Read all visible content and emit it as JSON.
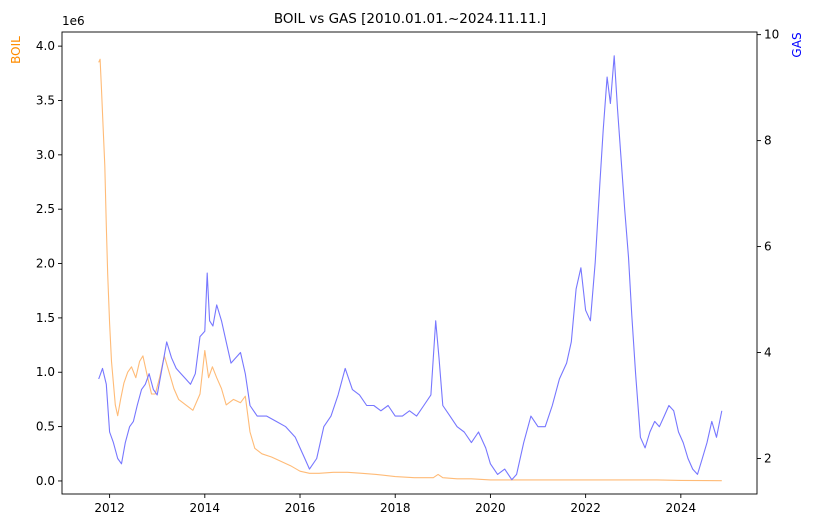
{
  "chart_data": {
    "type": "line",
    "title": "BOIL vs GAS [2010.01.01.~2024.11.11.]",
    "xlabel": "",
    "x_ticks": [
      2012,
      2014,
      2016,
      2018,
      2020,
      2022,
      2024
    ],
    "xlim": [
      2011.0,
      2025.6
    ],
    "grid": false,
    "legend": "none",
    "left_axis": {
      "label": "BOIL",
      "color": "#ff8c00",
      "scale_note": "1e6",
      "ylim": [
        -0.12,
        4.13
      ],
      "ticks": [
        "0.0",
        "0.5",
        "1.0",
        "1.5",
        "2.0",
        "2.5",
        "3.0",
        "3.5",
        "4.0"
      ]
    },
    "right_axis": {
      "label": "GAS",
      "color": "#0000ff",
      "ylim": [
        1.33,
        10.05
      ],
      "ticks": [
        "2",
        "4",
        "6",
        "8",
        "10"
      ]
    },
    "series": [
      {
        "name": "BOIL",
        "axis": "left",
        "units": "x1e6",
        "color": "#ffbb77",
        "x": [
          2011.77,
          2011.8,
          2011.83,
          2011.86,
          2011.9,
          2011.93,
          2011.96,
          2012.0,
          2012.04,
          2012.08,
          2012.12,
          2012.17,
          2012.23,
          2012.3,
          2012.38,
          2012.46,
          2012.55,
          2012.63,
          2012.7,
          2012.8,
          2012.88,
          2012.96,
          2013.05,
          2013.15,
          2013.25,
          2013.35,
          2013.45,
          2013.6,
          2013.75,
          2013.9,
          2014.0,
          2014.08,
          2014.16,
          2014.25,
          2014.35,
          2014.45,
          2014.6,
          2014.75,
          2014.85,
          2014.95,
          2015.05,
          2015.2,
          2015.4,
          2015.6,
          2015.8,
          2016.0,
          2016.2,
          2016.4,
          2016.7,
          2017.0,
          2017.3,
          2017.6,
          2018.0,
          2018.4,
          2018.8,
          2018.9,
          2019.0,
          2019.3,
          2019.6,
          2020.0,
          2020.5,
          2021.0,
          2021.5,
          2022.0,
          2022.5,
          2023.0,
          2023.5,
          2024.0,
          2024.5,
          2024.86
        ],
        "values": [
          3.85,
          3.88,
          3.6,
          3.3,
          2.9,
          2.35,
          1.9,
          1.45,
          1.1,
          0.9,
          0.7,
          0.6,
          0.75,
          0.9,
          1.0,
          1.05,
          0.95,
          1.1,
          1.15,
          0.95,
          0.8,
          0.8,
          0.95,
          1.15,
          1.0,
          0.85,
          0.75,
          0.7,
          0.65,
          0.8,
          1.2,
          0.95,
          1.05,
          0.95,
          0.85,
          0.7,
          0.75,
          0.72,
          0.78,
          0.45,
          0.3,
          0.25,
          0.22,
          0.18,
          0.14,
          0.09,
          0.07,
          0.07,
          0.08,
          0.08,
          0.07,
          0.06,
          0.04,
          0.03,
          0.03,
          0.06,
          0.03,
          0.02,
          0.02,
          0.01,
          0.01,
          0.01,
          0.01,
          0.01,
          0.01,
          0.01,
          0.01,
          0.005,
          0.003,
          0.002
        ]
      },
      {
        "name": "GAS",
        "axis": "right",
        "units": "",
        "color": "#7777ff",
        "x": [
          2011.77,
          2011.85,
          2011.93,
          2012.0,
          2012.08,
          2012.17,
          2012.25,
          2012.33,
          2012.42,
          2012.5,
          2012.58,
          2012.67,
          2012.75,
          2012.83,
          2012.92,
          2013.0,
          2013.1,
          2013.2,
          2013.3,
          2013.4,
          2013.5,
          2013.6,
          2013.7,
          2013.8,
          2013.9,
          2014.0,
          2014.05,
          2014.1,
          2014.17,
          2014.25,
          2014.35,
          2014.45,
          2014.55,
          2014.65,
          2014.75,
          2014.85,
          2014.95,
          2015.1,
          2015.3,
          2015.5,
          2015.7,
          2015.9,
          2016.0,
          2016.1,
          2016.2,
          2016.35,
          2016.5,
          2016.65,
          2016.8,
          2016.95,
          2017.1,
          2017.25,
          2017.4,
          2017.55,
          2017.7,
          2017.85,
          2018.0,
          2018.15,
          2018.3,
          2018.45,
          2018.6,
          2018.75,
          2018.85,
          2018.92,
          2019.0,
          2019.15,
          2019.3,
          2019.45,
          2019.6,
          2019.75,
          2019.9,
          2020.0,
          2020.15,
          2020.3,
          2020.45,
          2020.55,
          2020.7,
          2020.85,
          2021.0,
          2021.15,
          2021.3,
          2021.45,
          2021.6,
          2021.7,
          2021.8,
          2021.9,
          2022.0,
          2022.1,
          2022.2,
          2022.3,
          2022.37,
          2022.45,
          2022.52,
          2022.6,
          2022.67,
          2022.75,
          2022.82,
          2022.9,
          2022.97,
          2023.05,
          2023.15,
          2023.25,
          2023.35,
          2023.45,
          2023.55,
          2023.65,
          2023.75,
          2023.85,
          2023.95,
          2024.05,
          2024.15,
          2024.25,
          2024.35,
          2024.45,
          2024.55,
          2024.65,
          2024.75,
          2024.86
        ],
        "values": [
          3.5,
          3.7,
          3.4,
          2.5,
          2.3,
          2.0,
          1.9,
          2.3,
          2.6,
          2.7,
          3.0,
          3.3,
          3.4,
          3.6,
          3.3,
          3.2,
          3.7,
          4.2,
          3.9,
          3.7,
          3.6,
          3.5,
          3.4,
          3.6,
          4.3,
          4.4,
          5.5,
          4.6,
          4.5,
          4.9,
          4.6,
          4.2,
          3.8,
          3.9,
          4.0,
          3.6,
          3.0,
          2.8,
          2.8,
          2.7,
          2.6,
          2.4,
          2.2,
          2.0,
          1.8,
          2.0,
          2.6,
          2.8,
          3.2,
          3.7,
          3.3,
          3.2,
          3.0,
          3.0,
          2.9,
          3.0,
          2.8,
          2.8,
          2.9,
          2.8,
          3.0,
          3.2,
          4.6,
          3.9,
          3.0,
          2.8,
          2.6,
          2.5,
          2.3,
          2.5,
          2.2,
          1.9,
          1.7,
          1.8,
          1.6,
          1.7,
          2.3,
          2.8,
          2.6,
          2.6,
          3.0,
          3.5,
          3.8,
          4.2,
          5.2,
          5.6,
          4.8,
          4.6,
          5.7,
          7.2,
          8.2,
          9.2,
          8.7,
          9.6,
          8.6,
          7.6,
          6.7,
          5.8,
          4.7,
          3.6,
          2.4,
          2.2,
          2.5,
          2.7,
          2.6,
          2.8,
          3.0,
          2.9,
          2.5,
          2.3,
          2.0,
          1.8,
          1.7,
          2.0,
          2.3,
          2.7,
          2.4,
          2.9
        ]
      }
    ]
  }
}
